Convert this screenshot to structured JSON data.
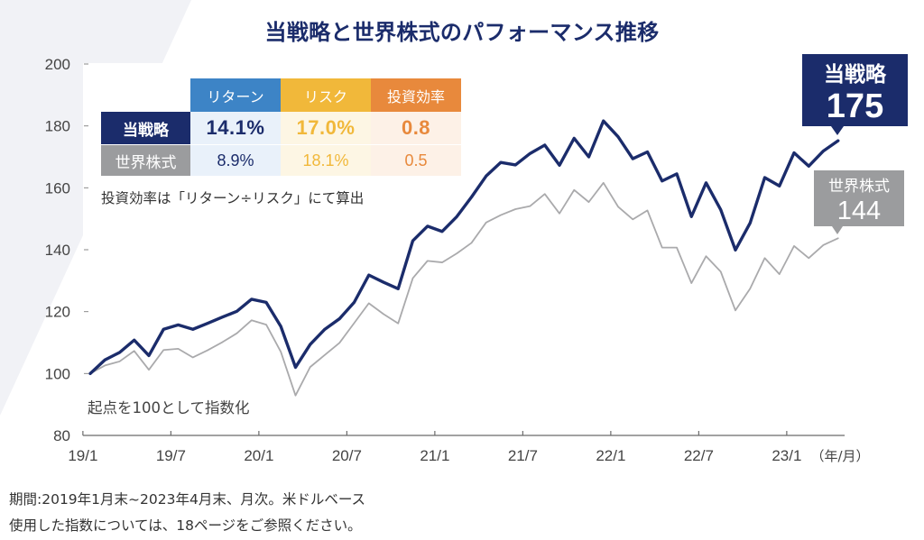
{
  "title": "当戦略と世界株式のパフォーマンス推移",
  "colors": {
    "navy": "#1b2c6b",
    "gray_line": "#aaaaac",
    "return": "#3d84c6",
    "risk": "#f1b83a",
    "efficiency": "#e8893c",
    "world_label": "#9b9c9e",
    "return_bg": "#e9f1fa",
    "risk_bg": "#fdf6e4",
    "efficiency_bg": "#fdf1e7",
    "background_shape": "#f1f2f6"
  },
  "table": {
    "headers": [
      "リターン",
      "リスク",
      "投資効率"
    ],
    "rows": [
      {
        "label": "当戦略",
        "values": [
          "14.1%",
          "17.0%",
          "0.8"
        ]
      },
      {
        "label": "世界株式",
        "values": [
          "8.9%",
          "18.1%",
          "0.5"
        ]
      }
    ],
    "note": "投資効率は「リターン÷リスク」にて算出"
  },
  "footnotes": [
    "期間:2019年1月末~2023年4月末、月次。米ドルベース",
    "使用した指数については、18ページをご参照ください。"
  ],
  "chart_data": {
    "type": "line",
    "title": "当戦略と世界株式のパフォーマンス推移",
    "xlabel": "（年/月）",
    "ylabel": "",
    "ylim": [
      80,
      200
    ],
    "yticks": [
      80,
      100,
      120,
      140,
      160,
      180,
      200
    ],
    "grid": false,
    "legend": "none (end-of-line callouts, right)",
    "x": [
      "2019/01",
      "2019/02",
      "2019/03",
      "2019/04",
      "2019/05",
      "2019/06",
      "2019/07",
      "2019/08",
      "2019/09",
      "2019/10",
      "2019/11",
      "2019/12",
      "2020/01",
      "2020/02",
      "2020/03",
      "2020/04",
      "2020/05",
      "2020/06",
      "2020/07",
      "2020/08",
      "2020/09",
      "2020/10",
      "2020/11",
      "2020/12",
      "2021/01",
      "2021/02",
      "2021/03",
      "2021/04",
      "2021/05",
      "2021/06",
      "2021/07",
      "2021/08",
      "2021/09",
      "2021/10",
      "2021/11",
      "2021/12",
      "2022/01",
      "2022/02",
      "2022/03",
      "2022/04",
      "2022/05",
      "2022/06",
      "2022/07",
      "2022/08",
      "2022/09",
      "2022/10",
      "2022/11",
      "2022/12",
      "2023/01",
      "2023/02",
      "2023/03",
      "2023/04"
    ],
    "xticks": [
      {
        "at": "2019/01",
        "label": "19/1"
      },
      {
        "at": "2019/07",
        "label": "19/7"
      },
      {
        "at": "2020/01",
        "label": "20/1"
      },
      {
        "at": "2020/07",
        "label": "20/7"
      },
      {
        "at": "2021/01",
        "label": "21/1"
      },
      {
        "at": "2021/07",
        "label": "21/7"
      },
      {
        "at": "2022/01",
        "label": "22/1"
      },
      {
        "at": "2022/07",
        "label": "22/7"
      },
      {
        "at": "2023/01",
        "label": "23/1"
      }
    ],
    "series": [
      {
        "name": "当戦略",
        "color": "#1b2c6b",
        "values": [
          100.0,
          104.4,
          106.8,
          110.8,
          105.8,
          114.3,
          115.7,
          114.3,
          116.2,
          118.2,
          120.1,
          124.0,
          123.0,
          115.2,
          102.0,
          109.4,
          114.3,
          117.7,
          123.0,
          131.8,
          129.5,
          127.4,
          142.9,
          147.6,
          145.9,
          150.7,
          157.0,
          163.8,
          168.2,
          167.4,
          171.1,
          173.8,
          167.3,
          176.0,
          170.0,
          181.6,
          176.5,
          169.4,
          171.6,
          162.2,
          164.5,
          150.7,
          161.6,
          152.9,
          139.9,
          148.6,
          163.3,
          160.6,
          171.3,
          167.0,
          171.9,
          175.2
        ]
      },
      {
        "name": "世界株式",
        "color": "#aaaaac",
        "values": [
          100.0,
          102.6,
          103.9,
          107.3,
          101.2,
          107.6,
          108.0,
          105.2,
          107.5,
          110.1,
          113.0,
          117.2,
          115.8,
          107.0,
          92.9,
          102.1,
          106.0,
          109.9,
          116.3,
          122.7,
          119.2,
          116.2,
          130.8,
          136.4,
          135.9,
          138.8,
          142.2,
          148.8,
          151.2,
          153.1,
          154.1,
          158.0,
          151.7,
          159.3,
          155.4,
          161.6,
          153.9,
          149.8,
          152.7,
          140.7,
          140.7,
          129.2,
          137.9,
          132.9,
          120.4,
          127.4,
          137.3,
          132.1,
          141.2,
          137.3,
          141.5,
          143.7
        ]
      }
    ],
    "callouts": [
      {
        "series": "当戦略",
        "label": "当戦略",
        "value": "175"
      },
      {
        "series": "世界株式",
        "label": "世界株式",
        "value": "144"
      }
    ],
    "annotations": [
      "起点を100として指数化"
    ]
  }
}
